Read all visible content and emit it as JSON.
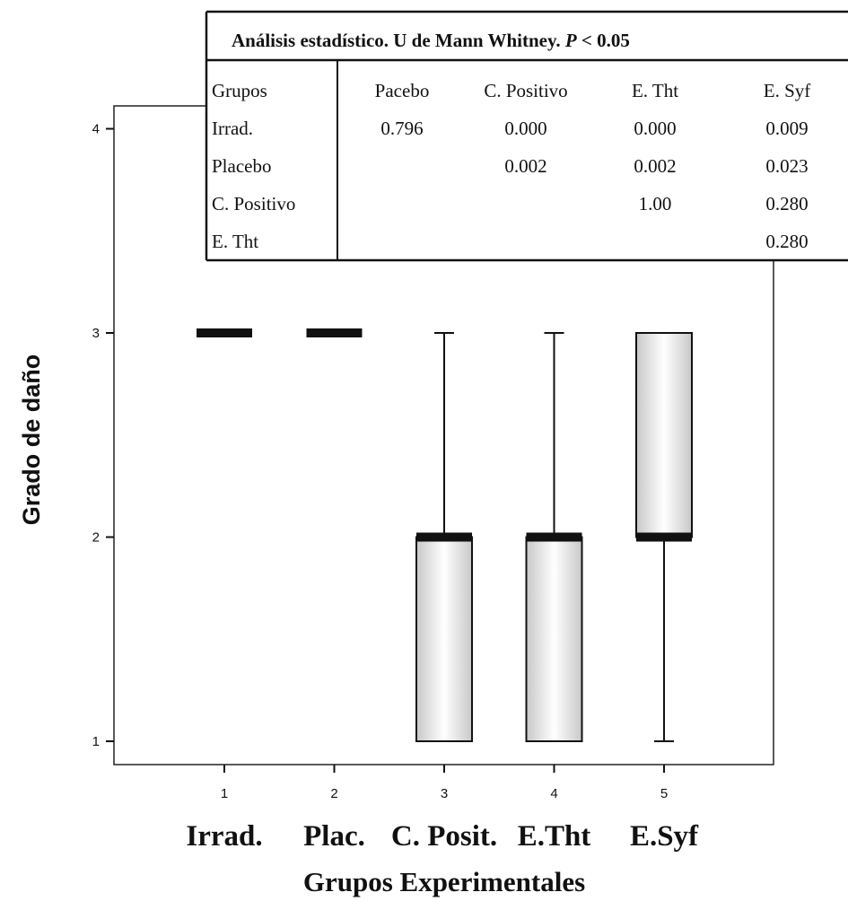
{
  "chart_data": {
    "type": "box",
    "xlabel": "Grupos Experimentales",
    "ylabel": "Grado de daño",
    "ylim": [
      0.88,
      4.1
    ],
    "yticks": [
      1,
      2,
      3,
      4
    ],
    "x": [
      1,
      2,
      3,
      4,
      5
    ],
    "group_labels": [
      "Irrad.",
      "Plac.",
      "C. Posit.",
      "E.Tht",
      "E.Syf"
    ],
    "boxes": [
      {
        "x": 1,
        "min": 3,
        "q1": 3,
        "median": 3,
        "q3": 3,
        "max": 3
      },
      {
        "x": 2,
        "min": 3,
        "q1": 3,
        "median": 3,
        "q3": 3,
        "max": 3
      },
      {
        "x": 3,
        "min": 1,
        "q1": 1,
        "median": 2,
        "q3": 2,
        "max": 3
      },
      {
        "x": 4,
        "min": 1,
        "q1": 1,
        "median": 2,
        "q3": 2,
        "max": 3
      },
      {
        "x": 5,
        "min": 1,
        "q1": 2,
        "median": 2,
        "q3": 3,
        "max": 3
      }
    ],
    "stats_table": {
      "title": "Análisis estadístico. U de Mann Whitney.",
      "title_p": "P",
      "title_tail": "< 0.05",
      "header": [
        "Grupos",
        "Pacebo",
        "C. Positivo",
        "E. Tht",
        "E. Syf"
      ],
      "rows": [
        [
          "Irrad.",
          "0.796",
          "0.000",
          "0.000",
          "0.009"
        ],
        [
          "Placebo",
          "",
          "0.002",
          "0.002",
          "0.023"
        ],
        [
          "C. Positivo",
          "",
          "",
          "1.00",
          "0.280"
        ],
        [
          "E. Tht",
          "",
          "",
          "",
          "0.280"
        ]
      ]
    }
  }
}
